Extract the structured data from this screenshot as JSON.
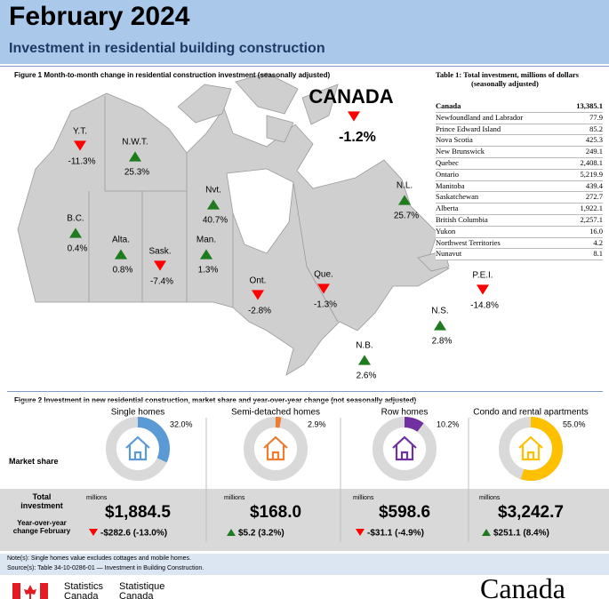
{
  "header": {
    "title": "February 2024",
    "subtitle": "Investment in residential building construction"
  },
  "figure1": {
    "title": "Figure 1  Month-to-month change in residential construction investment (seasonally adjusted)",
    "national": {
      "name": "CANADA",
      "change": "-1.2%"
    },
    "regions": [
      {
        "name": "Y.T.",
        "change": "-11.3%"
      },
      {
        "name": "N.W.T.",
        "change": "25.3%"
      },
      {
        "name": "Nvt.",
        "change": "40.7%"
      },
      {
        "name": "B.C.",
        "change": "0.4%"
      },
      {
        "name": "Alta.",
        "change": "0.8%"
      },
      {
        "name": "Sask.",
        "change": "-7.4%"
      },
      {
        "name": "Man.",
        "change": "1.3%"
      },
      {
        "name": "Ont.",
        "change": "-2.8%"
      },
      {
        "name": "Que.",
        "change": "-1.3%"
      },
      {
        "name": "N.L.",
        "change": "25.7%"
      },
      {
        "name": "P.E.I.",
        "change": "-14.8%"
      },
      {
        "name": "N.S.",
        "change": "2.8%"
      },
      {
        "name": "N.B.",
        "change": "2.6%"
      }
    ]
  },
  "table": {
    "title": "Table 1: Total investment, millions of dollars",
    "subtitle": "(seasonally adjusted)",
    "rows": [
      [
        "Canada",
        "13,385.1"
      ],
      [
        "Newfoundland and Labrador",
        "77.9"
      ],
      [
        "Prince Edward Island",
        "85.2"
      ],
      [
        "Nova Scotia",
        "425.3"
      ],
      [
        "New Brunswick",
        "249.1"
      ],
      [
        "Quebec",
        "2,408.1"
      ],
      [
        "Ontario",
        "5,219.9"
      ],
      [
        "Manitoba",
        "439.4"
      ],
      [
        "Saskatchewan",
        "272.7"
      ],
      [
        "Alberta",
        "1,922.1"
      ],
      [
        "British Columbia",
        "2,257.1"
      ],
      [
        "Yukon",
        "16.0"
      ],
      [
        "Northwest Territories",
        "4.2"
      ],
      [
        "Nunavut",
        "8.1"
      ]
    ]
  },
  "figure2": {
    "title": "Figure 2 Investment in new residential construction, market share and year-over-year change (not seasonally adjusted)",
    "row_labels": {
      "market_share": "Market share",
      "total": "Total investment",
      "change": "Year-over-year change February"
    },
    "unit": "millions",
    "segments": [
      {
        "name": "Single homes",
        "color": "#5b9bd5",
        "share": {
          "value": 32.0,
          "label": "32.0%"
        },
        "total": "$1,884.5",
        "change": "-$282.6 (-13.0%)"
      },
      {
        "name": "Semi-detached homes",
        "color": "#ed7d31",
        "share": {
          "value": 2.9,
          "label": "2.9%"
        },
        "total": "$168.0",
        "change": "$5.2 (3.2%)"
      },
      {
        "name": "Row homes",
        "color": "#7030a0",
        "share": {
          "value": 10.2,
          "label": "10.2%"
        },
        "total": "$598.6",
        "change": "-$31.1 (-4.9%)"
      },
      {
        "name": "Condo and rental apartments",
        "color": "#ffc000",
        "share": {
          "value": 55.0,
          "label": "55.0%"
        },
        "total": "$3,242.7",
        "change": "$251.1 (8.4%)"
      }
    ]
  },
  "notes": {
    "note": "Note(s): Single homes value excludes cottages and mobile homes.",
    "source": "Source(s): Table 34-10-0286-01 — Investment in Building Construction."
  },
  "footer": {
    "agency_en": "Statistics Canada",
    "agency_fr": "Statistique Canada",
    "wordmark": "Canada"
  }
}
